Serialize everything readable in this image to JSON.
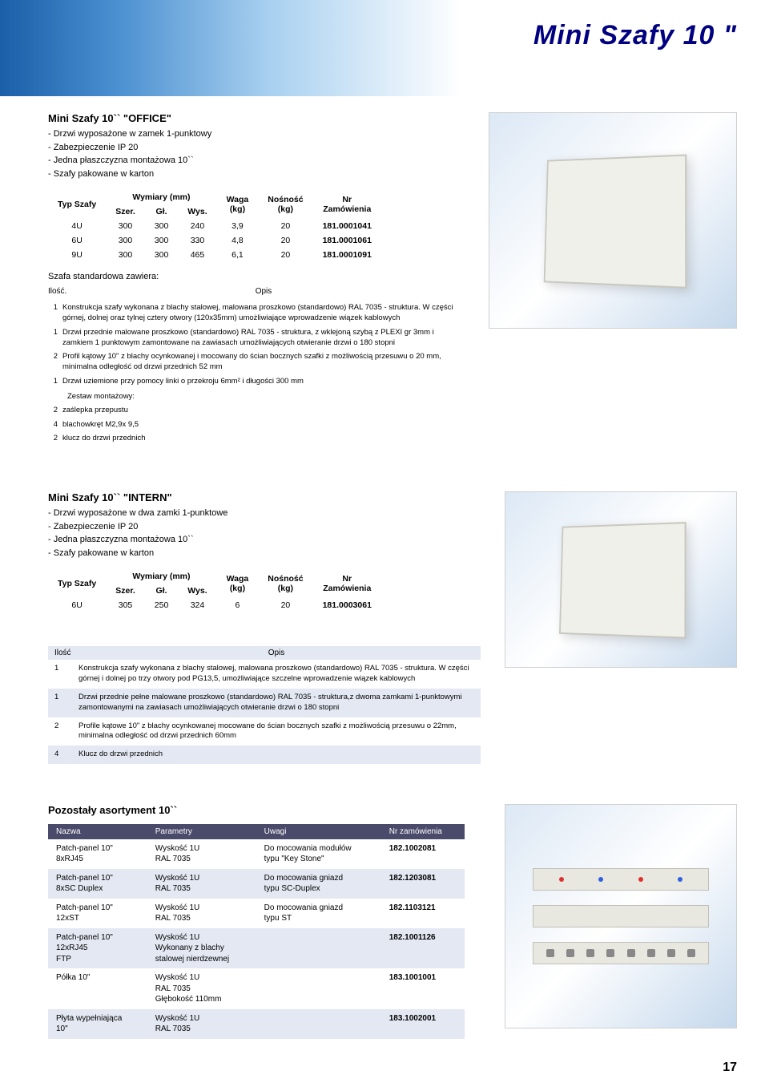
{
  "page": {
    "title": "Mini Szafy 10 \"",
    "number": "17"
  },
  "office": {
    "title": "Mini Szafy 10`` \"OFFICE\"",
    "bullets": [
      "Drzwi wyposażone w zamek 1-punktowy",
      "Zabezpieczenie IP 20",
      "Jedna płaszczyzna montażowa 10``",
      "Szafy pakowane w karton"
    ],
    "table": {
      "headers": {
        "typ": "Typ Szafy",
        "wym": "Wymiary (mm)",
        "szer": "Szer.",
        "gl": "Gł.",
        "wys": "Wys.",
        "waga": "Waga\n(kg)",
        "nosnosc": "Nośność\n(kg)",
        "nr": "Nr\nZamówienia"
      },
      "rows": [
        {
          "typ": "4U",
          "szer": "300",
          "gl": "300",
          "wys": "240",
          "waga": "3,9",
          "nosnosc": "20",
          "nr": "181.0001041"
        },
        {
          "typ": "6U",
          "szer": "300",
          "gl": "300",
          "wys": "330",
          "waga": "4,8",
          "nosnosc": "20",
          "nr": "181.0001061"
        },
        {
          "typ": "9U",
          "szer": "300",
          "gl": "300",
          "wys": "465",
          "waga": "6,1",
          "nosnosc": "20",
          "nr": "181.0001091"
        }
      ]
    },
    "std_header": "Szafa standardowa zawiera:",
    "desc_headers": {
      "qty": "Ilość.",
      "opis": "Opis"
    },
    "desc": [
      {
        "q": "1",
        "t": "Konstrukcja szafy wykonana z blachy stalowej, malowana proszkowo (standardowo) RAL 7035 - struktura. W części górnej, dolnej oraz tylnej cztery otwory (120x35mm) umożliwiające wprowadzenie wiązek kablowych"
      },
      {
        "q": "1",
        "t": "Drzwi przednie malowane proszkowo (standardowo) RAL 7035 - struktura, z wklejoną szybą z PLEXI gr 3mm i zamkiem 1 punktowym zamontowane na zawiasach umożliwiających otwieranie drzwi o 180 stopni"
      },
      {
        "q": "2",
        "t": "Profil kątowy 10\" z blachy ocynkowanej i mocowany do ścian bocznych szafki z możliwością przesuwu o 20 mm, minimalna odległość od drzwi przednich 52 mm"
      },
      {
        "q": "1",
        "t": "Drzwi uziemione przy pomocy linki o przekroju 6mm² i długości 300 mm"
      }
    ],
    "kit_header": "Zestaw montażowy:",
    "kit": [
      {
        "q": "2",
        "t": "zaślepka przepustu"
      },
      {
        "q": "4",
        "t": "blachowkręt M2,9x 9,5"
      },
      {
        "q": "2",
        "t": "klucz do drzwi przednich"
      }
    ]
  },
  "intern": {
    "title": "Mini Szafy 10`` \"INTERN\"",
    "bullets": [
      "Drzwi wyposażone w dwa zamki 1-punktowe",
      "Zabezpieczenie IP 20",
      "Jedna płaszczyzna montażowa 10``",
      "Szafy pakowane w karton"
    ],
    "table": {
      "rows": [
        {
          "typ": "6U",
          "szer": "305",
          "gl": "250",
          "wys": "324",
          "waga": "6",
          "nosnosc": "20",
          "nr": "181.0003061"
        }
      ]
    },
    "desc_headers": {
      "qty": "Ilość",
      "opis": "Opis"
    },
    "desc": [
      {
        "q": "1",
        "t": "Konstrukcja szafy wykonana z blachy stalowej, malowana proszkowo (standardowo) RAL 7035 - struktura. W części górnej i dolnej po trzy otwory pod PG13,5, umożliwiające szczelne wprowadzenie wiązek kablowych",
        "alt": false
      },
      {
        "q": "1",
        "t": "Drzwi przednie pełne malowane proszkowo (standardowo) RAL 7035 - struktura,z dwoma zamkami 1-punktowymi zamontowanymi na zawiasach umożliwiających otwieranie drzwi o 180 stopni",
        "alt": true
      },
      {
        "q": "2",
        "t": "Profile kątowe 10\" z blachy ocynkowanej mocowane do ścian bocznych szafki z możliwością przesuwu o 22mm, minimalna odległość od drzwi przednich 60mm",
        "alt": false
      },
      {
        "q": "4",
        "t": "Klucz do drzwi przednich",
        "alt": true
      }
    ]
  },
  "asort": {
    "title": "Pozostały asortyment 10``",
    "headers": {
      "nazwa": "Nazwa",
      "param": "Parametry",
      "uwagi": "Uwagi",
      "nr": "Nr zamówienia"
    },
    "rows": [
      {
        "nazwa": "Patch-panel 10\"\n8xRJ45",
        "param": "Wyskość 1U\nRAL 7035",
        "uwagi": "Do mocowania modułów\ntypu \"Key Stone\"",
        "nr": "182.1002081",
        "alt": false
      },
      {
        "nazwa": "Patch-panel 10\"\n8xSC Duplex",
        "param": "Wyskość 1U\nRAL 7035",
        "uwagi": "Do mocowania gniazd\ntypu SC-Duplex",
        "nr": "182.1203081",
        "alt": true
      },
      {
        "nazwa": "Patch-panel 10\"\n12xST",
        "param": "Wyskość 1U\nRAL 7035",
        "uwagi": "Do mocowania gniazd\ntypu ST",
        "nr": "182.1103121",
        "alt": false
      },
      {
        "nazwa": "Patch-panel 10\"\n12xRJ45\nFTP",
        "param": "Wyskość 1U\nWykonany z blachy\nstalowej nierdzewnej",
        "uwagi": "",
        "nr": "182.1001126",
        "alt": true
      },
      {
        "nazwa": "Półka 10\"",
        "param": "Wyskość 1U\nRAL 7035\nGłębokość 110mm",
        "uwagi": "",
        "nr": "183.1001001",
        "alt": false
      },
      {
        "nazwa": "Płyta wypełniająca\n10\"",
        "param": "Wyskość 1U\nRAL 7035",
        "uwagi": "",
        "nr": "183.1002001",
        "alt": true
      }
    ]
  },
  "colors": {
    "banner_start": "#1a5fa8",
    "header_bg": "#4a4a6a",
    "alt_row": "#e3e8f2",
    "title_color": "#000080"
  }
}
